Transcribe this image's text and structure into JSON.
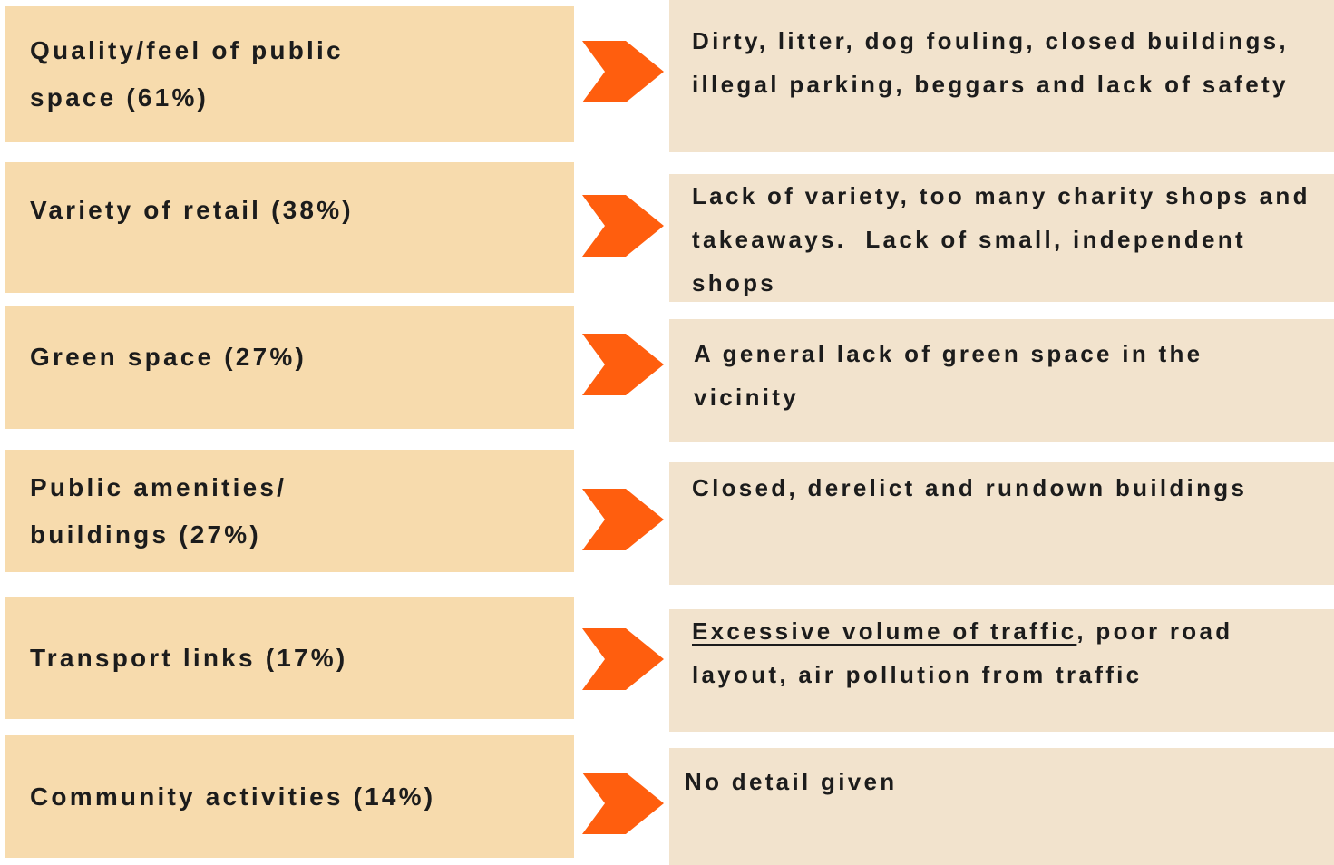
{
  "rows": [
    {
      "label": "Quality/feel of public space (61%)",
      "detail": [
        {
          "text": "Dirty, litter, dog fouling, closed buildings, illegal parking, beggars and lack of safety",
          "underline": false
        }
      ]
    },
    {
      "label": "Variety of retail (38%)",
      "detail": [
        {
          "text": "Lack of variety, too many charity shops and takeaways.  Lack of small, independent shops",
          "underline": false
        }
      ]
    },
    {
      "label": "Green space (27%)",
      "detail": [
        {
          "text": "A general lack of green space in the vicinity",
          "underline": false
        }
      ]
    },
    {
      "label": "Public amenities/ buildings (27%)",
      "detail": [
        {
          "text": "Closed, derelict and rundown buildings",
          "underline": false
        }
      ]
    },
    {
      "label": "Transport links (17%)",
      "detail": [
        {
          "text": "Excessive volume of traffic",
          "underline": true
        },
        {
          "text": ", poor road layout, air pollution from traffic",
          "underline": false
        }
      ]
    },
    {
      "label": "Community activities (14%)",
      "detail": [
        {
          "text": "No detail given",
          "underline": false
        }
      ]
    }
  ]
}
